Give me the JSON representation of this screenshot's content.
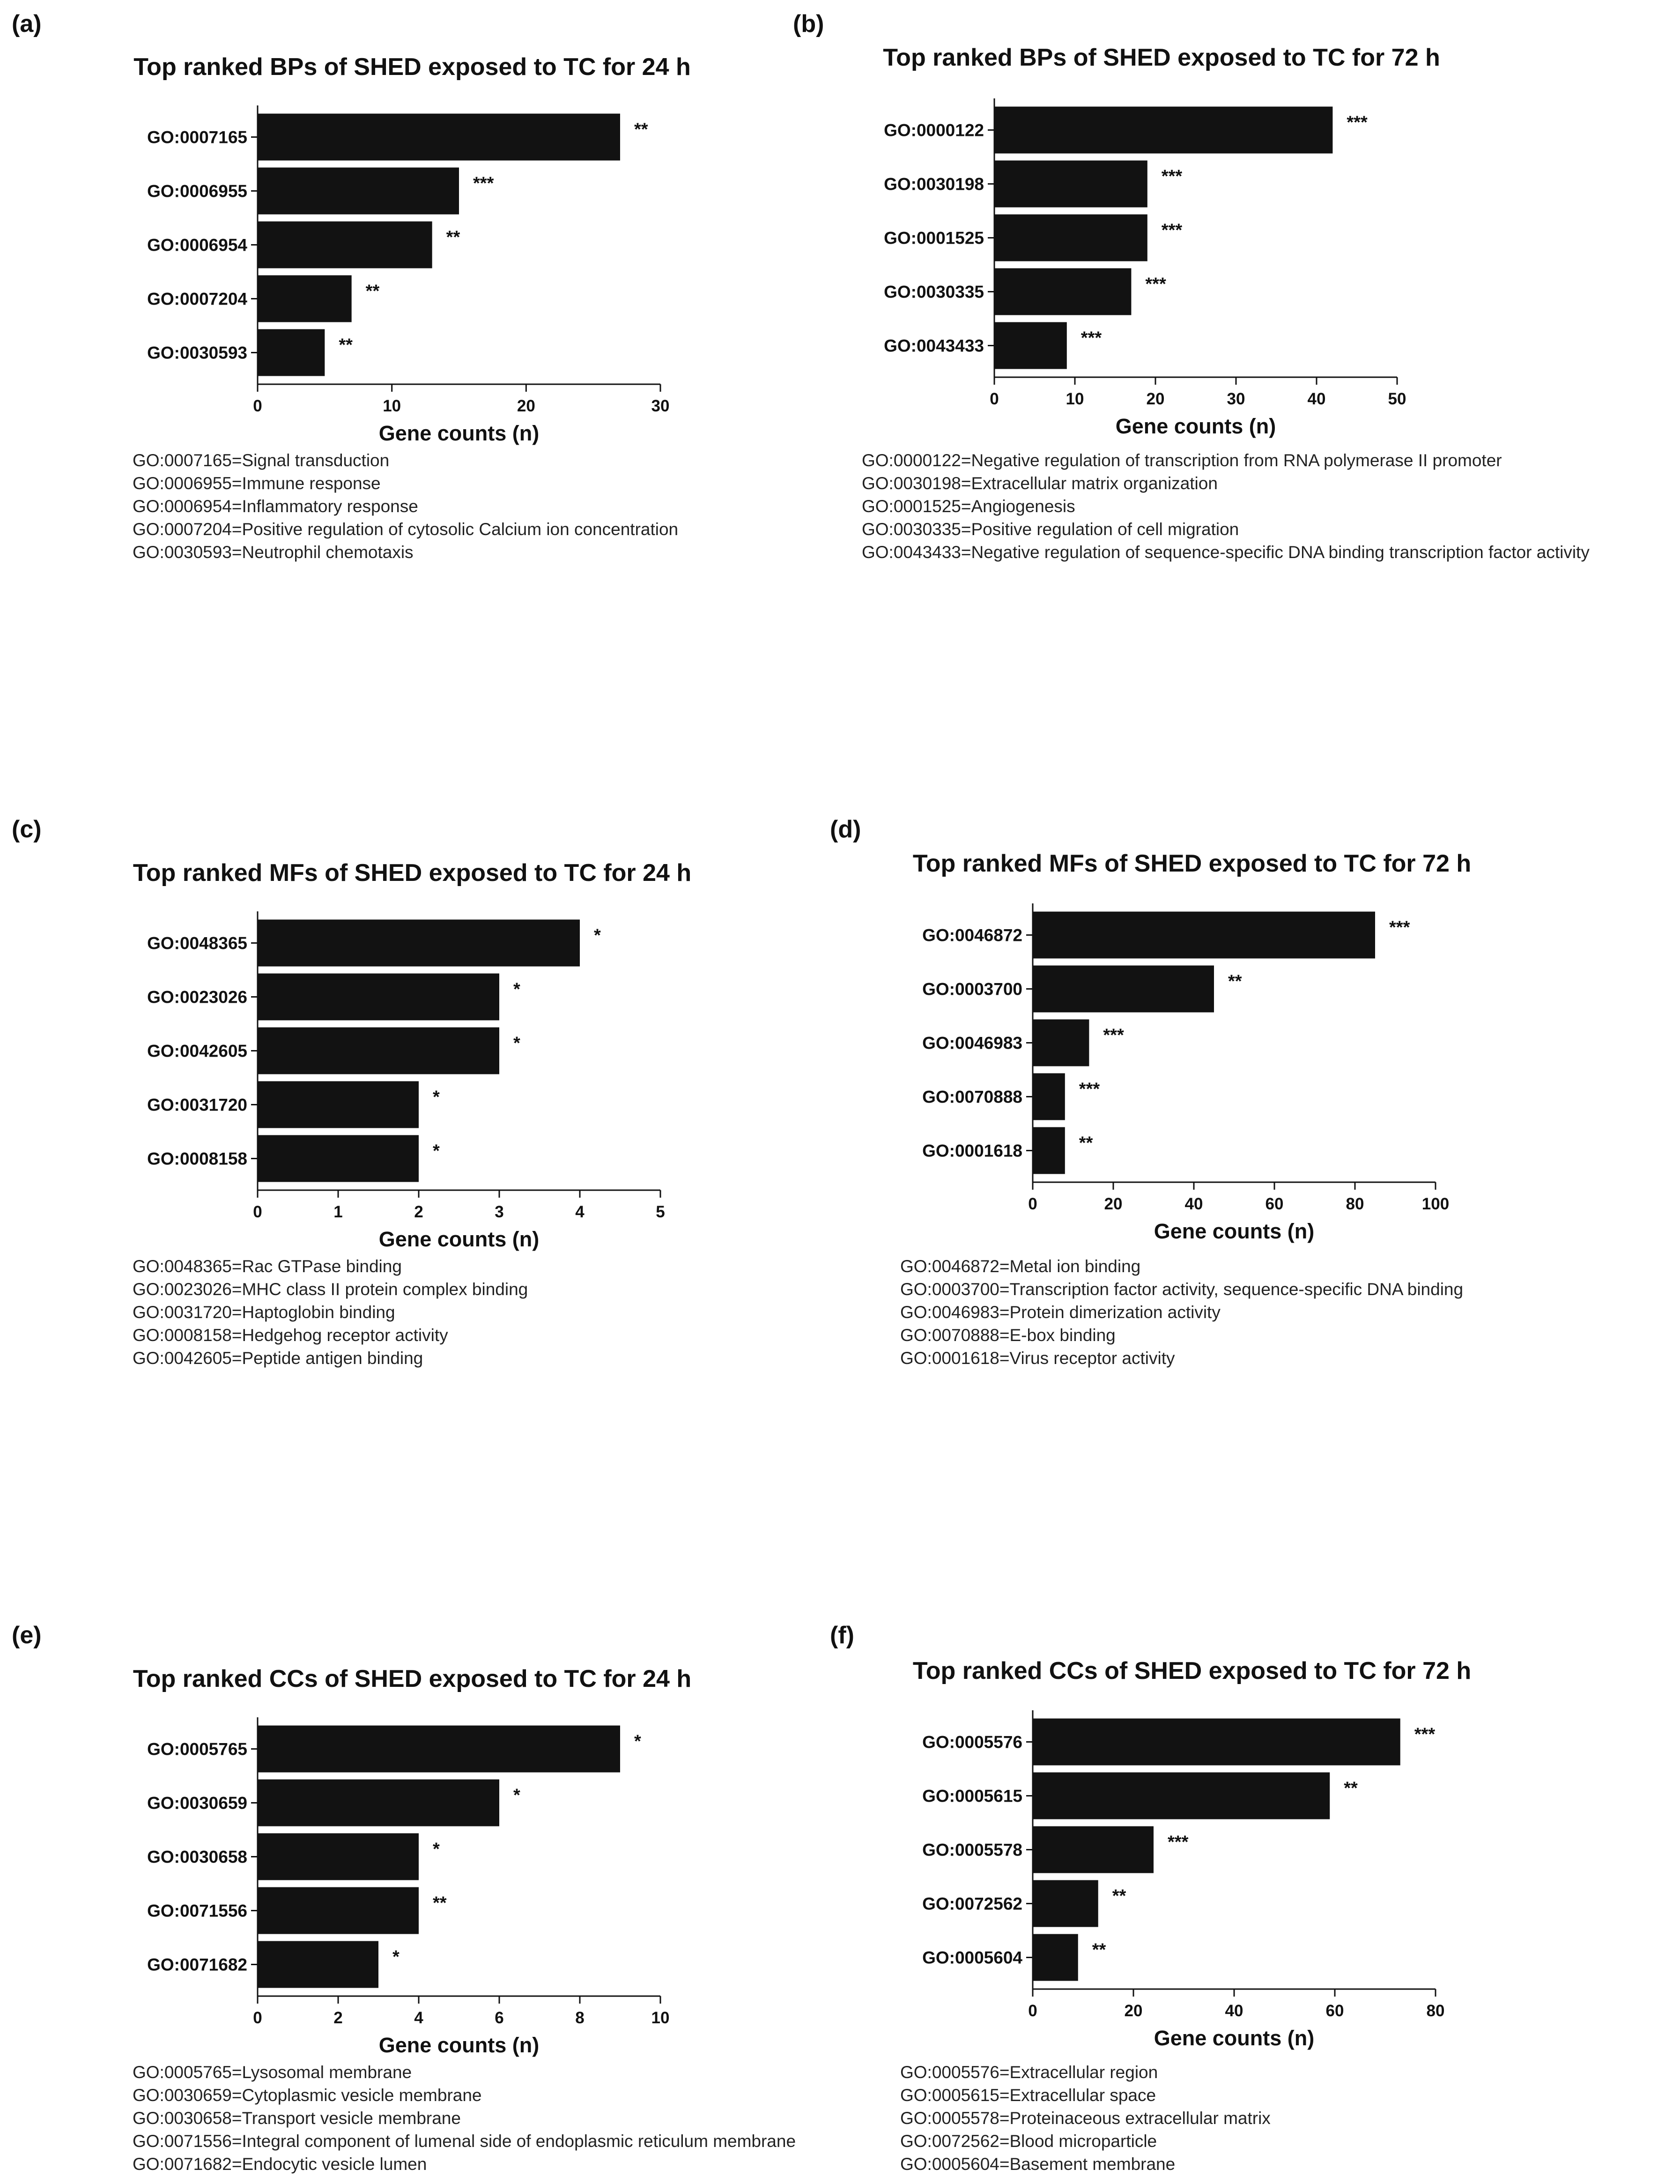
{
  "chart_data": [
    {
      "panel": "(a)",
      "type": "bar",
      "orientation": "horizontal",
      "title": "Top ranked BPs of SHED exposed to TC for 24 h",
      "xlabel": "Gene counts (n)",
      "ylabel": "",
      "xlim": [
        0,
        30
      ],
      "xticks": [
        0,
        10,
        20,
        30
      ],
      "categories": [
        "GO:0007165",
        "GO:0006955",
        "GO:0006954",
        "GO:0007204",
        "GO:0030593"
      ],
      "values": [
        27,
        15,
        13,
        7,
        5
      ],
      "significance": [
        "**",
        "***",
        "**",
        "**",
        "**"
      ],
      "legend": [
        "GO:0007165=Signal transduction",
        "GO:0006955=Immune response",
        "GO:0006954=Inflammatory response",
        "GO:0007204=Positive regulation of cytosolic Calcium ion concentration",
        "GO:0030593=Neutrophil chemotaxis"
      ]
    },
    {
      "panel": "(b)",
      "type": "bar",
      "orientation": "horizontal",
      "title": "Top ranked BPs of SHED exposed to TC for 72 h",
      "xlabel": "Gene counts (n)",
      "ylabel": "",
      "xlim": [
        0,
        50
      ],
      "xticks": [
        0,
        10,
        20,
        30,
        40,
        50
      ],
      "categories": [
        "GO:0000122",
        "GO:0030198",
        "GO:0001525",
        "GO:0030335",
        "GO:0043433"
      ],
      "values": [
        42,
        19,
        19,
        17,
        9
      ],
      "significance": [
        "***",
        "***",
        "***",
        "***",
        "***"
      ],
      "legend": [
        "GO:0000122=Negative regulation of transcription from RNA polymerase II promoter",
        "GO:0030198=Extracellular matrix organization",
        "GO:0001525=Angiogenesis",
        "GO:0030335=Positive regulation of cell migration",
        "GO:0043433=Negative regulation of sequence-specific DNA binding transcription factor activity"
      ]
    },
    {
      "panel": "(c)",
      "type": "bar",
      "orientation": "horizontal",
      "title": "Top ranked MFs of SHED exposed to TC for 24 h",
      "xlabel": "Gene counts (n)",
      "ylabel": "",
      "xlim": [
        0,
        5
      ],
      "xticks": [
        0,
        1,
        2,
        3,
        4,
        5
      ],
      "categories": [
        "GO:0048365",
        "GO:0023026",
        "GO:0042605",
        "GO:0031720",
        "GO:0008158"
      ],
      "values": [
        4,
        3,
        3,
        2,
        2
      ],
      "significance": [
        "*",
        "*",
        "*",
        "*",
        "*"
      ],
      "legend": [
        "GO:0048365=Rac GTPase binding",
        "GO:0023026=MHC class II protein complex binding",
        "GO:0031720=Haptoglobin binding",
        "GO:0008158=Hedgehog receptor activity",
        "GO:0042605=Peptide antigen binding"
      ]
    },
    {
      "panel": "(d)",
      "type": "bar",
      "orientation": "horizontal",
      "title": "Top ranked MFs of SHED exposed to TC for 72 h",
      "xlabel": "Gene counts (n)",
      "ylabel": "",
      "xlim": [
        0,
        100
      ],
      "xticks": [
        0,
        20,
        40,
        60,
        80,
        100
      ],
      "categories": [
        "GO:0046872",
        "GO:0003700",
        "GO:0046983",
        "GO:0070888",
        "GO:0001618"
      ],
      "values": [
        85,
        45,
        14,
        8,
        8
      ],
      "significance": [
        "***",
        "**",
        "***",
        "***",
        "**"
      ],
      "legend": [
        "GO:0046872=Metal ion binding",
        "GO:0003700=Transcription factor activity, sequence-specific DNA binding",
        "GO:0046983=Protein dimerization activity",
        "GO:0070888=E-box binding",
        "GO:0001618=Virus receptor activity"
      ]
    },
    {
      "panel": "(e)",
      "type": "bar",
      "orientation": "horizontal",
      "title": "Top ranked CCs of SHED exposed to TC for 24 h",
      "xlabel": "Gene counts (n)",
      "ylabel": "",
      "xlim": [
        0,
        10
      ],
      "xticks": [
        0,
        2,
        4,
        6,
        8,
        10
      ],
      "categories": [
        "GO:0005765",
        "GO:0030659",
        "GO:0030658",
        "GO:0071556",
        "GO:0071682"
      ],
      "values": [
        9,
        6,
        4,
        4,
        3
      ],
      "significance": [
        "*",
        "*",
        "*",
        "**",
        "*"
      ],
      "legend": [
        "GO:0005765=Lysosomal membrane",
        "GO:0030659=Cytoplasmic vesicle membrane",
        "GO:0030658=Transport vesicle membrane",
        "GO:0071556=Integral component of lumenal side of endoplasmic reticulum membrane",
        "GO:0071682=Endocytic vesicle lumen"
      ]
    },
    {
      "panel": "(f)",
      "type": "bar",
      "orientation": "horizontal",
      "title": "Top ranked CCs of SHED exposed to TC for 72 h",
      "xlabel": "Gene counts (n)",
      "ylabel": "",
      "xlim": [
        0,
        80
      ],
      "xticks": [
        0,
        20,
        40,
        60,
        80
      ],
      "categories": [
        "GO:0005576",
        "GO:0005615",
        "GO:0005578",
        "GO:0072562",
        "GO:0005604"
      ],
      "values": [
        73,
        59,
        24,
        13,
        9
      ],
      "significance": [
        "***",
        "**",
        "***",
        "**",
        "**"
      ],
      "legend": [
        "GO:0005576=Extracellular region",
        "GO:0005615=Extracellular space",
        "GO:0005578=Proteinaceous extracellular matrix",
        "GO:0072562=Blood microparticle",
        "GO:0005604=Basement membrane"
      ]
    }
  ]
}
